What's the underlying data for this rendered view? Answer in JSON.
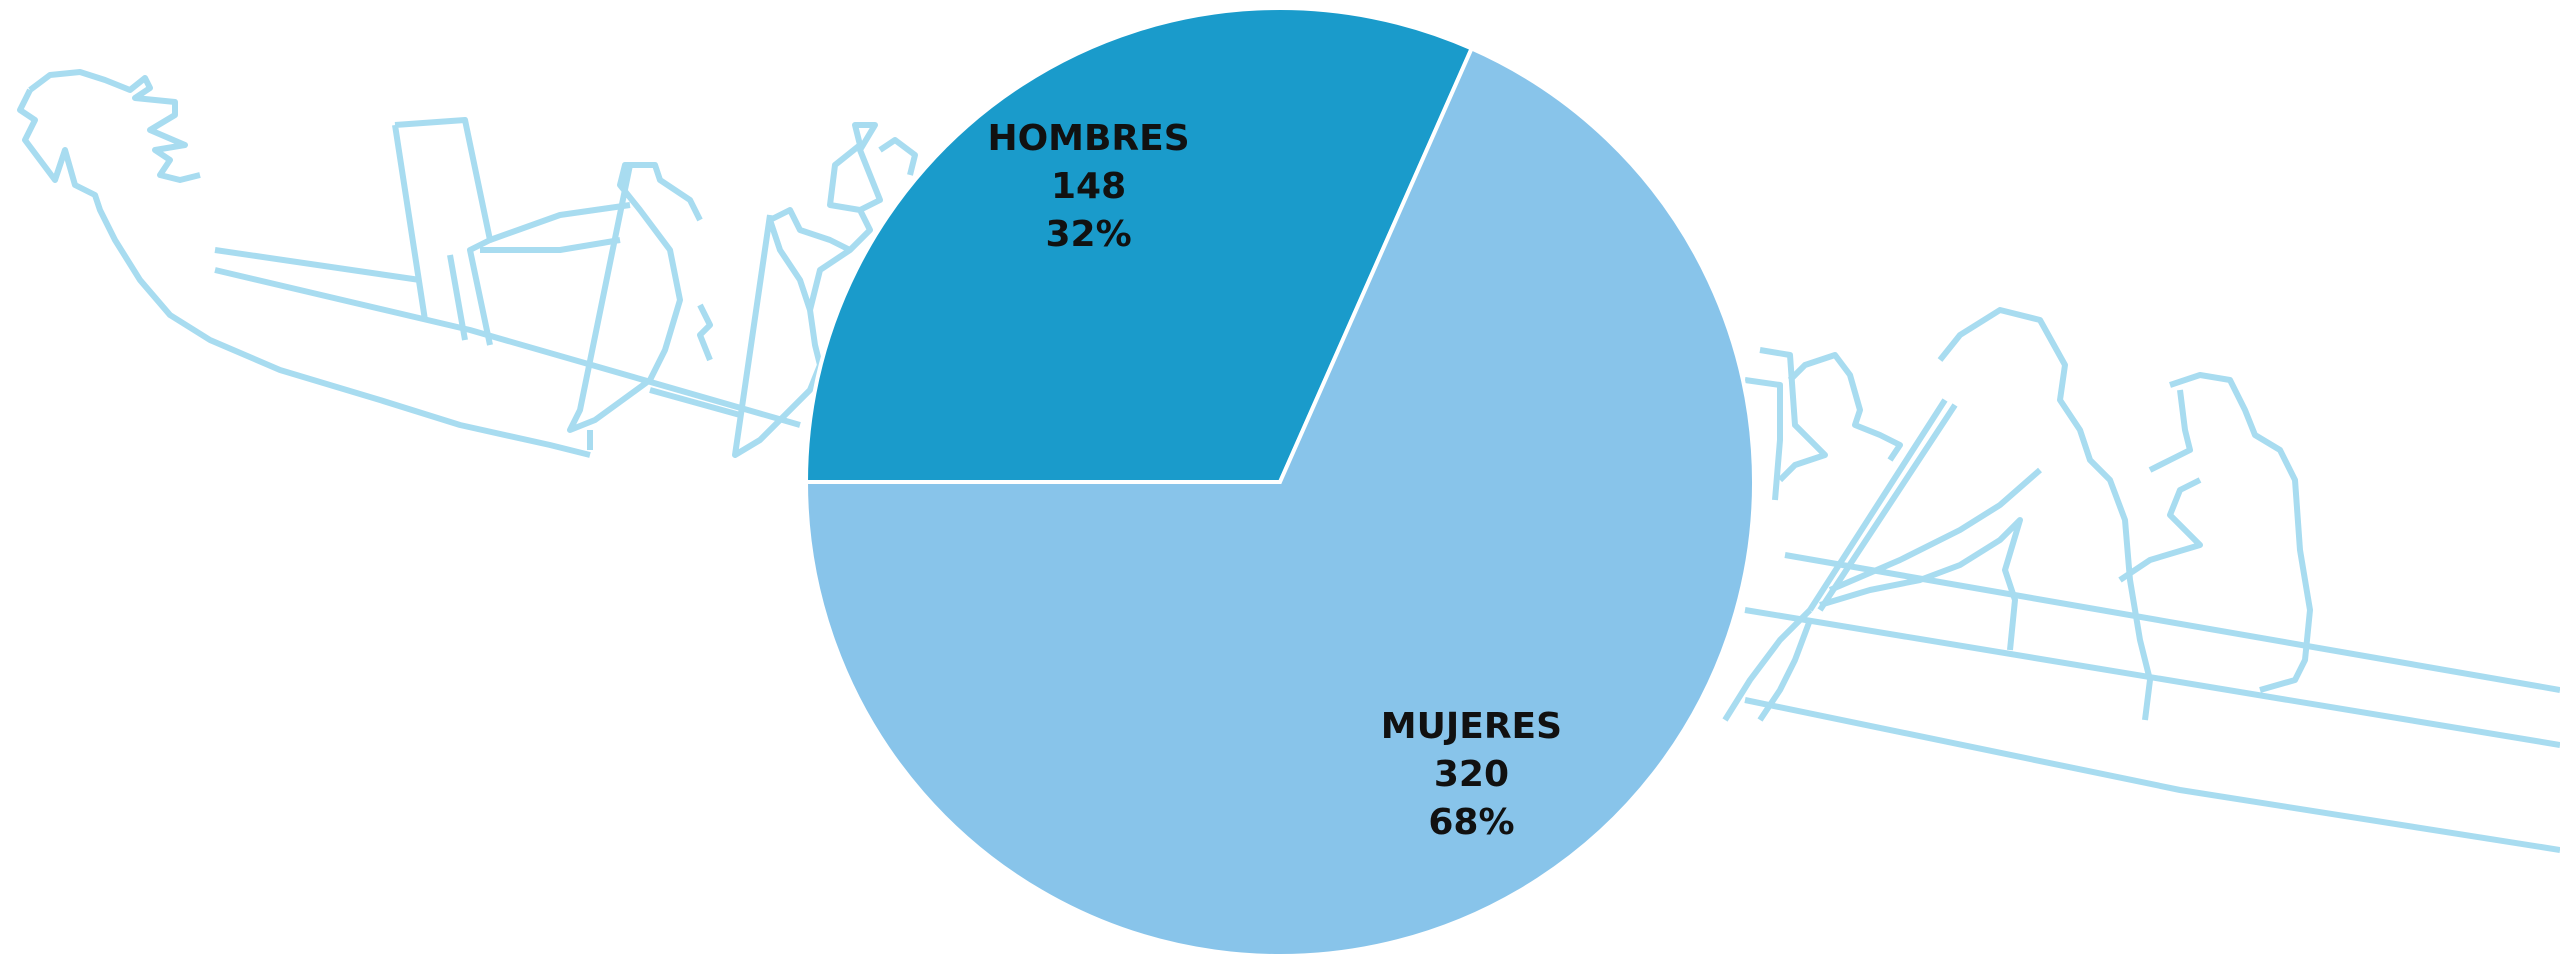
{
  "chart_data": {
    "type": "pie",
    "categories": [
      "HOMBRES",
      "MUJERES"
    ],
    "values": [
      148,
      320
    ],
    "percent_labels": [
      "32%",
      "68%"
    ],
    "colors": [
      "#1a9bcb",
      "#88c4ea"
    ]
  }
}
